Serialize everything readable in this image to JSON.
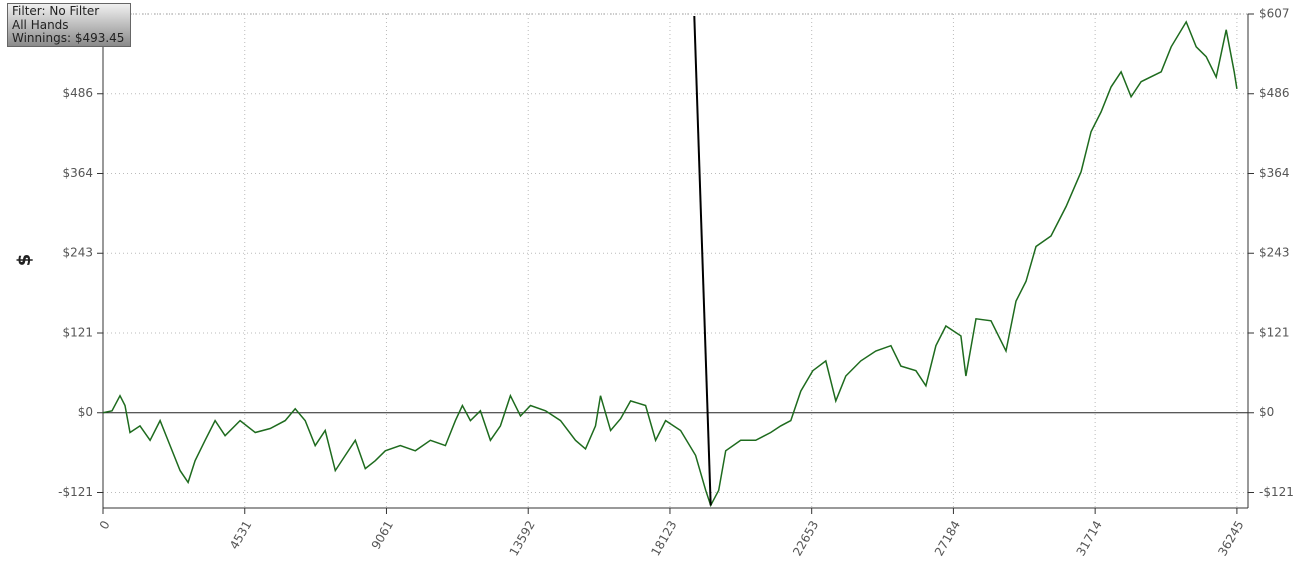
{
  "info": {
    "lines": [
      "Filter: No Filter",
      "All Hands",
      "Winnings: $493.45"
    ]
  },
  "chart_data": {
    "type": "line",
    "ylabel": "$",
    "xlim": [
      0,
      36600
    ],
    "ylim": [
      -145,
      607
    ],
    "xticks": [
      0,
      4531,
      9061,
      13592,
      18123,
      22653,
      27184,
      31714,
      36245
    ],
    "yticks": [
      {
        "value": -121.4,
        "label": "-$121"
      },
      {
        "value": 0,
        "label": "$0"
      },
      {
        "value": 121.4,
        "label": "$121"
      },
      {
        "value": 242.8,
        "label": "$243"
      },
      {
        "value": 364.2,
        "label": "$364"
      },
      {
        "value": 485.6,
        "label": "$486"
      },
      {
        "value": 607,
        "label": "$607"
      }
    ],
    "grid": true,
    "series": [
      {
        "color": "#1e6b1e",
        "x": [
          0,
          288,
          544,
          704,
          864,
          1184,
          1504,
          1824,
          2144,
          2464,
          2720,
          2944,
          3264,
          3584,
          3904,
          4384,
          4864,
          5344,
          5824,
          6144,
          6464,
          6784,
          7104,
          7424,
          7744,
          8064,
          8384,
          8704,
          9024,
          9504,
          9984,
          10464,
          10944,
          11264,
          11488,
          11744,
          12064,
          12384,
          12704,
          13024,
          13344,
          13664,
          14144,
          14624,
          15104,
          15424,
          15744,
          15904,
          16224,
          16544,
          16864,
          17344,
          17664,
          17984,
          18464,
          18944,
          19264,
          19424,
          19680,
          19904,
          20384,
          20864,
          21344,
          21664,
          21984,
          22304,
          22688,
          23104,
          23424,
          23744,
          24224,
          24704,
          25184,
          25504,
          25984,
          26304,
          26624,
          26944,
          27424,
          27584,
          27904,
          28384,
          28864,
          29184,
          29504,
          29824,
          30304,
          30784,
          31264,
          31584,
          31904,
          32224,
          32544,
          32864,
          33184,
          33824,
          34144,
          34624,
          34944,
          35264,
          35584,
          35904,
          36160,
          36245
        ],
        "values": [
          0,
          3,
          26,
          11,
          -30,
          -20,
          -42,
          -12,
          -50,
          -88,
          -106,
          -73,
          -42,
          -12,
          -35,
          -12,
          -30,
          -24,
          -12,
          6,
          -12,
          -50,
          -27,
          -88,
          -65,
          -42,
          -85,
          -73,
          -58,
          -50,
          -58,
          -42,
          -50,
          -12,
          11,
          -12,
          3,
          -42,
          -20,
          26,
          -5,
          11,
          3,
          -12,
          -42,
          -55,
          -20,
          26,
          -27,
          -9,
          18,
          11,
          -42,
          -12,
          -27,
          -65,
          -118,
          -141,
          -118,
          -58,
          -42,
          -42,
          -30,
          -20,
          -12,
          33,
          64,
          79,
          18,
          56,
          79,
          94,
          102,
          71,
          64,
          41,
          102,
          132,
          117,
          56,
          143,
          140,
          94,
          170,
          200,
          253,
          269,
          314,
          367,
          428,
          458,
          496,
          519,
          481,
          504,
          519,
          557,
          595,
          557,
          542,
          511,
          583,
          519,
          493
        ]
      },
      {
        "color": "#000000",
        "x": [
          18900,
          19424
        ],
        "values": [
          604,
          -141
        ]
      }
    ]
  }
}
